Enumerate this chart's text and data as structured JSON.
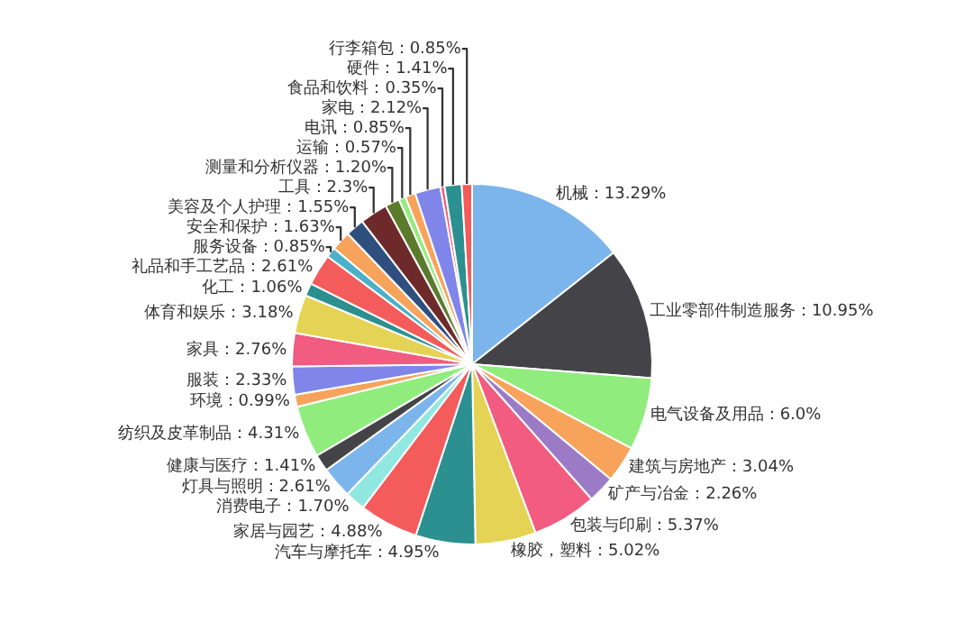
{
  "chart_data": {
    "type": "pie",
    "categories": [
      "机械",
      "工业零部件制造服务",
      "电气设备及用品",
      "建筑与房地产",
      "矿产与冶金",
      "包装与印刷",
      "橡胶，塑料",
      "汽车与摩托车",
      "家居与园艺",
      "消费电子",
      "灯具与照明",
      "健康与医疗",
      "纺织及皮革制品",
      "环境",
      "服装",
      "家具",
      "体育和娱乐",
      "化工",
      "礼品和手工艺品",
      "服务设备",
      "安全和保护",
      "美容及个人护理",
      "工具",
      "测量和分析仪器",
      "运输",
      "电讯",
      "家电",
      "食品和饮料",
      "硬件",
      "行李箱包"
    ],
    "values": [
      13.29,
      10.95,
      6.0,
      3.04,
      2.26,
      5.37,
      5.02,
      4.95,
      4.88,
      1.7,
      2.61,
      1.41,
      4.31,
      0.99,
      2.33,
      2.76,
      3.18,
      1.06,
      2.61,
      0.85,
      1.63,
      1.55,
      2.3,
      1.2,
      0.57,
      0.85,
      2.12,
      0.35,
      1.41,
      0.85
    ],
    "value_labels": [
      "13.29%",
      "10.95%",
      "6.0%",
      "3.04%",
      "2.26%",
      "5.37%",
      "5.02%",
      "4.95%",
      "4.88%",
      "1.70%",
      "2.61%",
      "1.41%",
      "4.31%",
      "0.99%",
      "2.33%",
      "2.76%",
      "3.18%",
      "1.06%",
      "2.61%",
      "0.85%",
      "1.63%",
      "1.55%",
      "2.3%",
      "1.20%",
      "0.57%",
      "0.85%",
      "2.12%",
      "0.35%",
      "1.41%",
      "0.85%"
    ],
    "colors": [
      "#7cb5ec",
      "#434348",
      "#90ed7d",
      "#f7a35c",
      "#9b7bc6",
      "#f15c80",
      "#e4d354",
      "#2b908f",
      "#f45b5b",
      "#91e8e1",
      "#7cb5ec",
      "#434348",
      "#90ed7d",
      "#f7a35c",
      "#8085e9",
      "#f15c80",
      "#e4d354",
      "#2b908f",
      "#f45b5b",
      "#4bb0c8",
      "#f7a35c",
      "#2f4f7f",
      "#6e2a2a",
      "#5c7a2c",
      "#90ed7d",
      "#f7a35c",
      "#8085e9",
      "#f15c80",
      "#2b908f",
      "#f45b5b"
    ]
  }
}
